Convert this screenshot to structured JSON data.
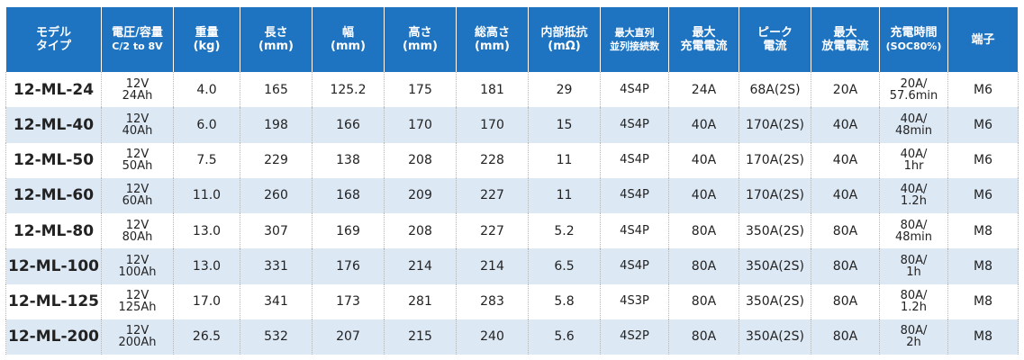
{
  "table": {
    "headers": [
      [
        "モデル",
        "タイプ"
      ],
      [
        "電圧/容量",
        "C/2 to 8V"
      ],
      [
        "重量",
        "(kg)"
      ],
      [
        "長さ",
        "(mm)"
      ],
      [
        "幅",
        "(mm)"
      ],
      [
        "高さ",
        "(mm)"
      ],
      [
        "総高さ",
        "(mm)"
      ],
      [
        "内部抵抗",
        "(mΩ)"
      ],
      [
        "最大直列",
        "並列接続数"
      ],
      [
        "最大",
        "充電電流"
      ],
      [
        "ピーク",
        "電流"
      ],
      [
        "最大",
        "放電電流"
      ],
      [
        "充電時間",
        "(SOC80%)"
      ],
      [
        "端子"
      ]
    ],
    "rows": [
      {
        "model": "12-ML-24",
        "voltage": "12V",
        "capacity": "24Ah",
        "weight": "4.0",
        "length": "165",
        "width": "125.2",
        "height": "175",
        "total_height": "181",
        "resistance": "29",
        "connection": "4S4P",
        "max_charge": "24A",
        "peak": "68A(2S)",
        "max_discharge": "20A",
        "charge_current": "20A/",
        "charge_time": "57.6min",
        "terminal": "M6"
      },
      {
        "model": "12-ML-40",
        "voltage": "12V",
        "capacity": "40Ah",
        "weight": "6.0",
        "length": "198",
        "width": "166",
        "height": "170",
        "total_height": "170",
        "resistance": "15",
        "connection": "4S4P",
        "max_charge": "40A",
        "peak": "170A(2S)",
        "max_discharge": "40A",
        "charge_current": "40A/",
        "charge_time": "48min",
        "terminal": "M6"
      },
      {
        "model": "12-ML-50",
        "voltage": "12V",
        "capacity": "50Ah",
        "weight": "7.5",
        "length": "229",
        "width": "138",
        "height": "208",
        "total_height": "228",
        "resistance": "11",
        "connection": "4S4P",
        "max_charge": "40A",
        "peak": "170A(2S)",
        "max_discharge": "40A",
        "charge_current": "40A/",
        "charge_time": "1hr",
        "terminal": "M6"
      },
      {
        "model": "12-ML-60",
        "voltage": "12V",
        "capacity": "60Ah",
        "weight": "11.0",
        "length": "260",
        "width": "168",
        "height": "209",
        "total_height": "227",
        "resistance": "11",
        "connection": "4S4P",
        "max_charge": "40A",
        "peak": "170A(2S)",
        "max_discharge": "40A",
        "charge_current": "40A/",
        "charge_time": "1.2h",
        "terminal": "M6"
      },
      {
        "model": "12-ML-80",
        "voltage": "12V",
        "capacity": "80Ah",
        "weight": "13.0",
        "length": "307",
        "width": "169",
        "height": "208",
        "total_height": "227",
        "resistance": "5.2",
        "connection": "4S4P",
        "max_charge": "80A",
        "peak": "350A(2S)",
        "max_discharge": "80A",
        "charge_current": "80A/",
        "charge_time": "48min",
        "terminal": "M8"
      },
      {
        "model": "12-ML-100",
        "voltage": "12V",
        "capacity": "100Ah",
        "weight": "13.0",
        "length": "331",
        "width": "176",
        "height": "214",
        "total_height": "214",
        "resistance": "6.5",
        "connection": "4S4P",
        "max_charge": "80A",
        "peak": "350A(2S)",
        "max_discharge": "80A",
        "charge_current": "80A/",
        "charge_time": "1h",
        "terminal": "M8"
      },
      {
        "model": "12-ML-125",
        "voltage": "12V",
        "capacity": "125Ah",
        "weight": "17.0",
        "length": "341",
        "width": "173",
        "height": "281",
        "total_height": "283",
        "resistance": "5.8",
        "connection": "4S3P",
        "max_charge": "80A",
        "peak": "350A(2S)",
        "max_discharge": "80A",
        "charge_current": "80A/",
        "charge_time": "1.2h",
        "terminal": "M8"
      },
      {
        "model": "12-ML-200",
        "voltage": "12V",
        "capacity": "200Ah",
        "weight": "26.5",
        "length": "532",
        "width": "207",
        "height": "215",
        "total_height": "240",
        "resistance": "5.6",
        "connection": "4S2P",
        "max_charge": "80A",
        "peak": "350A(2S)",
        "max_discharge": "80A",
        "charge_current": "80A/",
        "charge_time": "2h",
        "terminal": "M8"
      }
    ]
  },
  "colors": {
    "header_bg": "#1f74c2",
    "header_text": "#ffffff",
    "stripe": "#dde8f5"
  }
}
